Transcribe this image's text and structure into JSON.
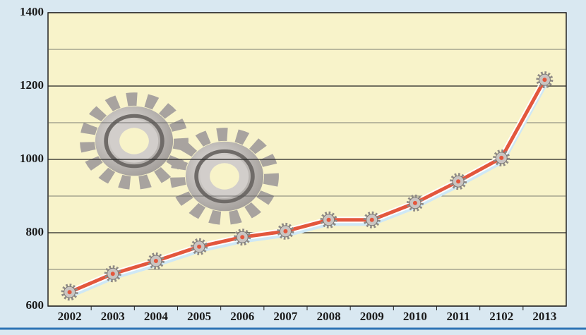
{
  "chart_data": {
    "type": "line",
    "categories": [
      "2002",
      "2003",
      "2004",
      "2005",
      "2006",
      "2007",
      "2008",
      "2009",
      "2010",
      "2011",
      "2102",
      "2013"
    ],
    "series": [
      {
        "color": "#e3573d",
        "values": [
          638,
          688,
          723,
          762,
          788,
          804,
          835,
          835,
          881,
          940,
          1004,
          1217
        ]
      }
    ],
    "ylim": [
      600,
      1400
    ],
    "yticks": [
      600,
      800,
      1000,
      1200,
      1400
    ],
    "minor_yticks": [
      700,
      900,
      1100,
      1300
    ],
    "grid": true
  }
}
